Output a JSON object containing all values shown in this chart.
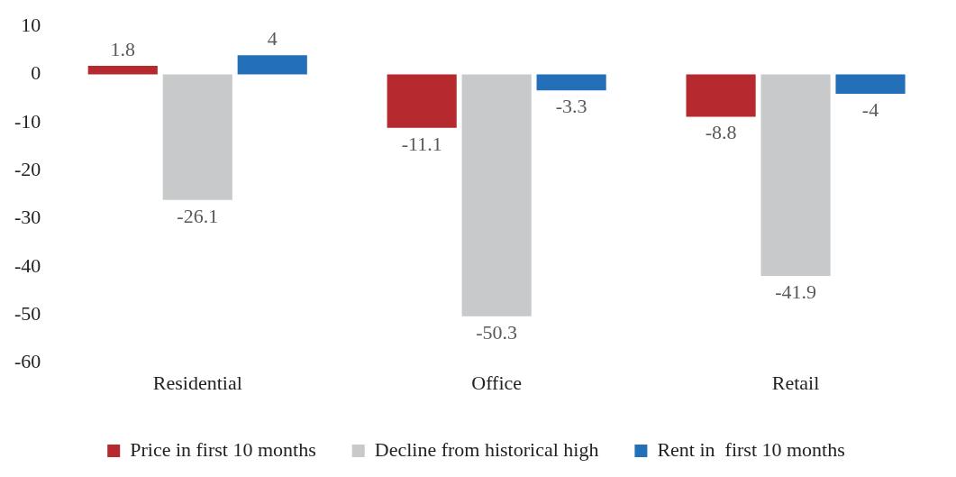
{
  "chart_data": {
    "type": "bar",
    "categories": [
      "Residential",
      "Office",
      "Retail"
    ],
    "series": [
      {
        "name": "Price in first 10 months",
        "color": "#b5292f",
        "values": [
          1.8,
          -11.1,
          -8.8
        ]
      },
      {
        "name": "Decline from historical high",
        "color": "#c8c9cb",
        "values": [
          -26.1,
          -50.3,
          -41.9
        ]
      },
      {
        "name": "Rent in  first 10 months",
        "color": "#2470b8",
        "values": [
          4,
          -3.3,
          -4
        ]
      }
    ],
    "ylim": [
      -60,
      10
    ],
    "yticks": [
      -60,
      -50,
      -40,
      -30,
      -20,
      -10,
      0,
      10
    ],
    "grid": false,
    "legend": "bottom",
    "data_labels": true
  }
}
